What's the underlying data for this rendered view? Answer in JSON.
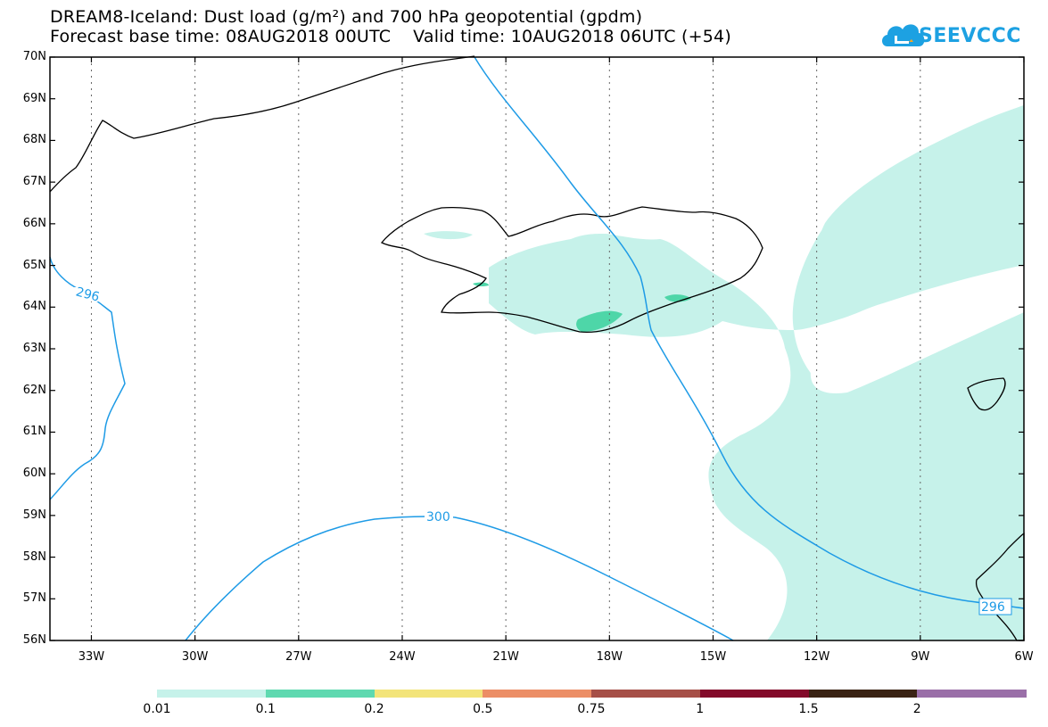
{
  "title_line1": "DREAM8-Iceland: Dust load (g/m²) and 700 hPa geopotential (gpdm)",
  "title_line2": "Forecast base time: 08AUG2018 00UTC    Valid time: 10AUG2018 06UTC (+54)",
  "logo": {
    "text": "SEEVCCC",
    "icon": "cloud-logo-icon",
    "color": "#1da1e2"
  },
  "map": {
    "lon_range": [
      -34.2,
      -6
    ],
    "lat_range": [
      56,
      70
    ],
    "lat_labels": [
      "70N",
      "69N",
      "68N",
      "67N",
      "66N",
      "65N",
      "64N",
      "63N",
      "62N",
      "61N",
      "60N",
      "59N",
      "58N",
      "57N",
      "56N"
    ],
    "lon_labels": [
      "33W",
      "30W",
      "27W",
      "24W",
      "21W",
      "18W",
      "15W",
      "12W",
      "9W",
      "6W"
    ],
    "contour_labels": [
      "296",
      "300",
      "296"
    ],
    "contour_color": "#1e9be6",
    "dust_fill_colors": {
      "light": "#c6f2ea",
      "medium": "#4ed6a8"
    }
  },
  "colorbar": {
    "colors": [
      "#c6f2ea",
      "#5fd9b0",
      "#f3e47a",
      "#ec8e66",
      "#a64f47",
      "#830a2a",
      "#3a2314",
      "#9a6fa8"
    ],
    "labels": [
      "0.01",
      "0.1",
      "0.2",
      "0.5",
      "0.75",
      "1",
      "1.5",
      "2"
    ]
  }
}
